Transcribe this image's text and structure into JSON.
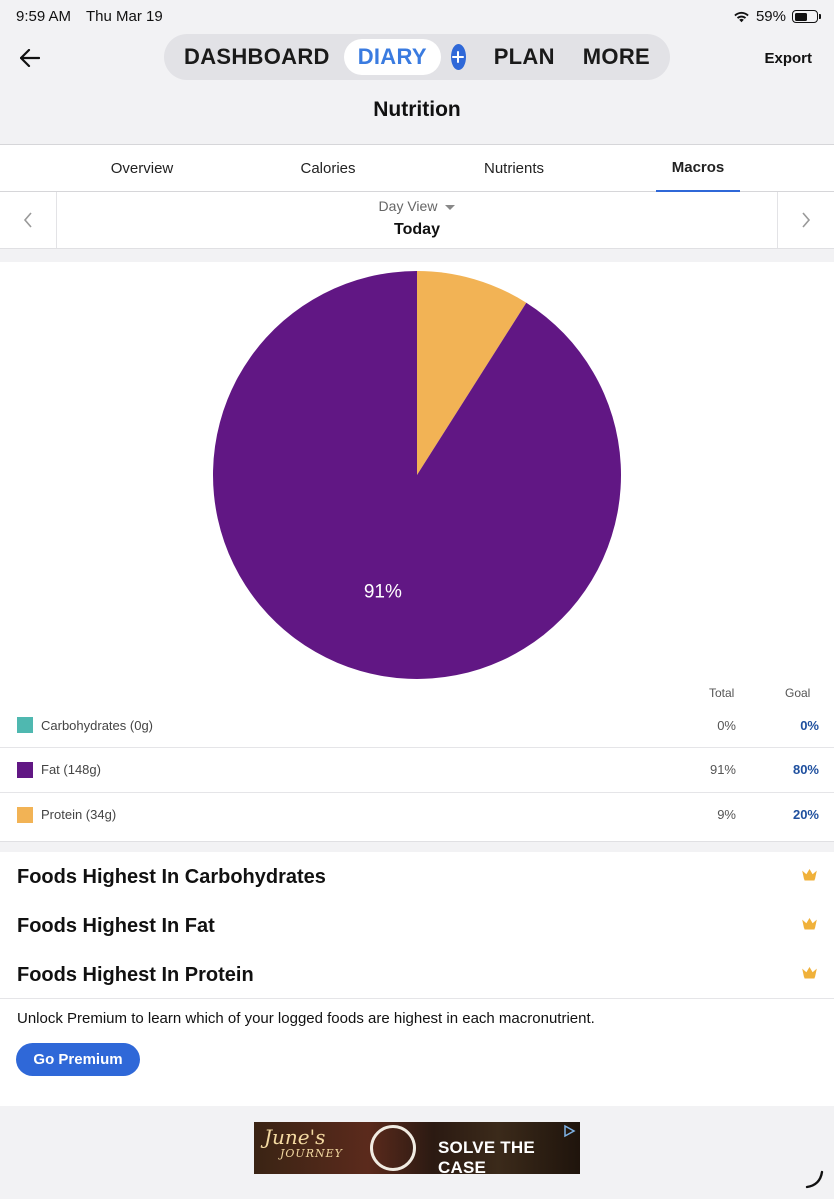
{
  "status_bar": {
    "time": "9:59 AM",
    "date": "Thu Mar 19",
    "battery": "59%",
    "battery_fraction": 0.59
  },
  "nav": {
    "items": [
      "DASHBOARD",
      "DIARY",
      "PLAN",
      "MORE"
    ],
    "active": "DIARY",
    "export_label": "Export"
  },
  "page_title": "Nutrition",
  "tabs": [
    {
      "label": "Overview",
      "active": false
    },
    {
      "label": "Calories",
      "active": false
    },
    {
      "label": "Nutrients",
      "active": false
    },
    {
      "label": "Macros",
      "active": true
    }
  ],
  "day_view": {
    "label": "Day View",
    "value": "Today"
  },
  "chart_data": {
    "type": "pie",
    "slices": [
      {
        "name": "Carbohydrates",
        "value": 0,
        "color": "#4fb8b0"
      },
      {
        "name": "Fat",
        "value": 91,
        "color": "#611784"
      },
      {
        "name": "Protein",
        "value": 9,
        "color": "#f2b355"
      }
    ],
    "data_labels": [
      "91%"
    ],
    "start_angle_deg": 0,
    "direction": "clockwise-from-top"
  },
  "legend": {
    "total_header": "Total",
    "goal_header": "Goal",
    "rows": [
      {
        "label": "Carbohydrates (0g)",
        "total": "0%",
        "goal": "0%",
        "color": "#4fb8b0"
      },
      {
        "label": "Fat (148g)",
        "total": "91%",
        "goal": "80%",
        "color": "#611784"
      },
      {
        "label": "Protein (34g)",
        "total": "9%",
        "goal": "20%",
        "color": "#f2b355"
      }
    ]
  },
  "foods": {
    "rows": [
      "Foods Highest In Carbohydrates",
      "Foods Highest In Fat",
      "Foods Highest In Protein"
    ],
    "unlock_text": "Unlock Premium to learn which of your logged foods are highest in each macronutrient.",
    "premium_button": "Go Premium"
  },
  "ad": {
    "brand": "June's",
    "brand_sub": "JOURNEY",
    "cta": "SOLVE THE CASE"
  },
  "colors": {
    "accent": "#2f68d8",
    "crown": "#f0b13a"
  }
}
